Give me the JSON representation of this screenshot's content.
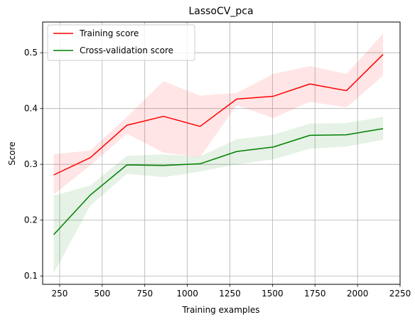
{
  "chart_data": {
    "type": "line",
    "title": "LassoCV_pca",
    "xlabel": "Training examples",
    "ylabel": "Score",
    "xlim": [
      150,
      2250
    ],
    "ylim": [
      0.085,
      0.555
    ],
    "grid": true,
    "legend_position": "top-left",
    "x": [
      215,
      430,
      645,
      860,
      1075,
      1290,
      1505,
      1720,
      1935,
      2150
    ],
    "xticks": [
      250,
      500,
      750,
      1000,
      1250,
      1500,
      1750,
      2000,
      2250
    ],
    "xtick_labels": [
      "250",
      "500",
      "750",
      "1000",
      "1250",
      "1500",
      "1750",
      "2000",
      "2250"
    ],
    "yticks": [
      0.1,
      0.2,
      0.3,
      0.4,
      0.5
    ],
    "ytick_labels": [
      "0.1",
      "0.2",
      "0.3",
      "0.4",
      "0.5"
    ],
    "series": [
      {
        "name": "Training score",
        "color": "#ff0000",
        "band_color": "#ff0000",
        "values": [
          0.281,
          0.312,
          0.37,
          0.386,
          0.368,
          0.417,
          0.422,
          0.444,
          0.432,
          0.497
        ],
        "lower": [
          0.246,
          0.298,
          0.355,
          0.321,
          0.313,
          0.406,
          0.383,
          0.412,
          0.402,
          0.459
        ],
        "upper": [
          0.318,
          0.325,
          0.385,
          0.449,
          0.423,
          0.428,
          0.462,
          0.476,
          0.462,
          0.534
        ]
      },
      {
        "name": "Cross-validation score",
        "color": "#008000",
        "band_color": "#008000",
        "values": [
          0.174,
          0.245,
          0.299,
          0.298,
          0.301,
          0.323,
          0.331,
          0.352,
          0.353,
          0.364
        ],
        "lower": [
          0.105,
          0.226,
          0.283,
          0.277,
          0.287,
          0.3,
          0.309,
          0.328,
          0.332,
          0.344
        ],
        "upper": [
          0.244,
          0.262,
          0.315,
          0.318,
          0.314,
          0.345,
          0.353,
          0.373,
          0.374,
          0.385
        ]
      }
    ]
  }
}
